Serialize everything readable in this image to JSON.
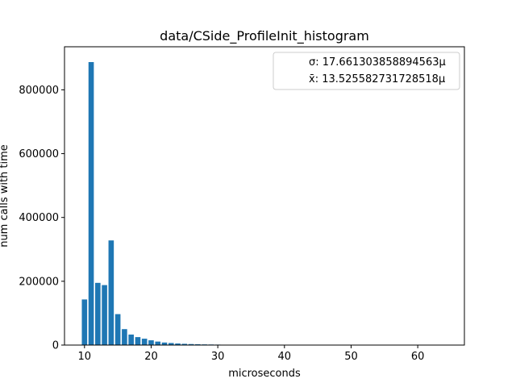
{
  "chart_data": {
    "type": "bar",
    "title": "data/CSide_ProfileInit_histogram",
    "xlabel": "microseconds",
    "ylabel": "num calls with time",
    "xlim": [
      7,
      67
    ],
    "ylim": [
      0,
      935000
    ],
    "xticks": [
      10,
      20,
      30,
      40,
      50,
      60
    ],
    "yticks": [
      0,
      200000,
      400000,
      600000,
      800000
    ],
    "grid": false,
    "legend_placement": "top-right",
    "legend": [
      "σ: 17.661303858894563µ",
      "x̄: 13.525582731728518µ"
    ],
    "bar_color": "#1f77b4",
    "x": [
      10,
      11,
      12,
      13,
      14,
      15,
      16,
      17,
      18,
      19,
      20,
      21,
      22,
      23,
      24,
      25,
      26,
      27,
      28,
      29,
      30,
      31,
      32,
      33,
      34,
      35,
      36,
      37,
      38,
      39,
      40,
      41,
      42,
      43,
      44,
      45,
      46,
      47,
      48,
      49,
      50,
      51,
      52,
      53,
      54,
      55,
      56,
      57,
      58,
      59,
      60,
      61,
      62,
      63,
      64,
      65,
      66
    ],
    "values": [
      143000,
      887000,
      195000,
      188000,
      328000,
      97000,
      50000,
      33000,
      25000,
      20000,
      15000,
      11000,
      8000,
      6500,
      5000,
      4000,
      3200,
      2600,
      2100,
      1800,
      1500,
      1200,
      1000,
      800,
      650,
      500,
      400,
      320,
      260,
      210,
      170,
      140,
      110,
      90,
      75,
      60,
      50,
      40,
      32,
      26,
      21,
      17,
      14,
      11,
      9,
      7,
      6,
      5,
      4,
      3,
      3,
      2,
      2,
      2,
      1,
      1,
      1
    ]
  }
}
